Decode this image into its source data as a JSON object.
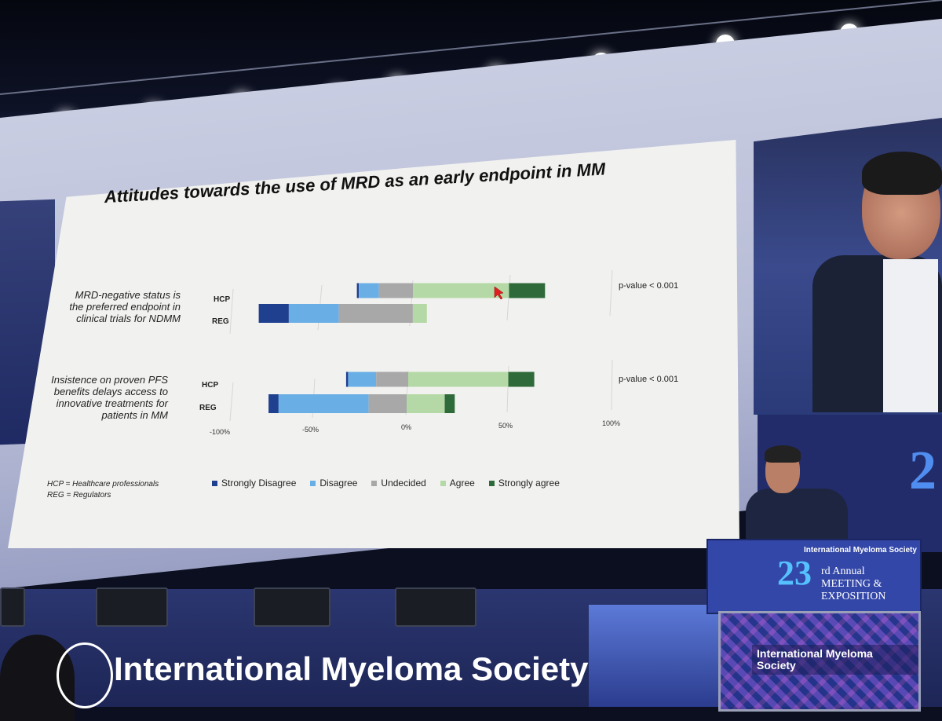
{
  "slide": {
    "title": "Attitudes towards the use of MRD as an early endpoint in MM",
    "questions": [
      {
        "text": "MRD-negative status is the preferred endpoint in clinical trials for NDMM",
        "p_value": "p-value < 0.001"
      },
      {
        "text": "Insistence on proven PFS benefits delays access to innovative treatments for patients in MM",
        "p_value": "p-value < 0.001"
      }
    ],
    "group_labels": [
      "HCP",
      "REG"
    ],
    "abbreviations": [
      "HCP = Healthcare professionals",
      "REG = Regulators"
    ],
    "x_ticks": [
      "-100%",
      "-50%",
      "0%",
      "50%",
      "100%"
    ],
    "legend": [
      {
        "label": "Strongly Disagree",
        "color": "#1f3f8f"
      },
      {
        "label": "Disagree",
        "color": "#6aaee6"
      },
      {
        "label": "Undecided",
        "color": "#a8a8a8"
      },
      {
        "label": "Agree",
        "color": "#b5d9a6"
      },
      {
        "label": "Strongly agree",
        "color": "#2f6b3a"
      }
    ]
  },
  "chart_data": {
    "type": "bar",
    "orientation": "horizontal-diverging",
    "title": "Attitudes towards the use of MRD as an early endpoint in MM",
    "xlim": [
      -100,
      100
    ],
    "x_ticks": [
      "-100%",
      "-50%",
      "0%",
      "50%",
      "100%"
    ],
    "categories": [
      "Strongly Disagree",
      "Disagree",
      "Undecided",
      "Agree",
      "Strongly agree"
    ],
    "groups": [
      {
        "question": "MRD-negative status is the preferred endpoint in clinical trials for NDMM",
        "rows": [
          {
            "label": "HCP",
            "values": [
              1,
              10,
              17,
              48,
              18
            ]
          },
          {
            "label": "REG",
            "values": [
              15,
              25,
              37,
              7,
              0
            ]
          }
        ]
      },
      {
        "question": "Insistence on proven PFS benefits delays access to innovative treatments for patients in MM",
        "rows": [
          {
            "label": "HCP",
            "values": [
              1,
              14,
              16,
              50,
              13
            ]
          },
          {
            "label": "REG",
            "values": [
              5,
              45,
              19,
              19,
              5
            ]
          }
        ]
      }
    ]
  },
  "event": {
    "brand": "International Myeloma Society",
    "podium_number": "23",
    "podium_suffix": "rd Annual",
    "podium_meeting": "MEETING &",
    "podium_exposition": "EXPOSITION",
    "side_number": "2"
  }
}
